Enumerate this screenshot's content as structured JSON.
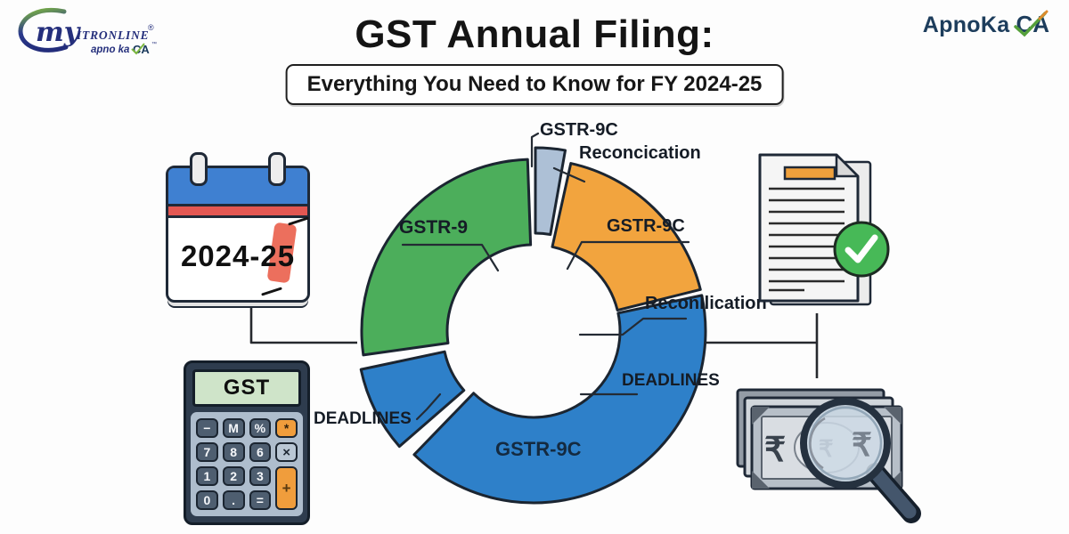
{
  "logos": {
    "left": {
      "my": "my",
      "itronline": "ITRONLINE",
      "reg": "®",
      "tagline": "apno ka",
      "ca": "CA",
      "tm": "™"
    },
    "right": {
      "apnoka": "ApnoKa",
      "ca": "CA"
    }
  },
  "header": {
    "title": "GST Annual Filing:",
    "subtitle": "Everything You Need to Know for FY 2024-25"
  },
  "chart_data": {
    "type": "pie",
    "subtype": "donut-infographic",
    "center": [
      599,
      372
    ],
    "outer_radius": 193,
    "inner_radius": 97,
    "outline_color": "#1b2531",
    "segments": [
      {
        "id": "reconciliation-sliver",
        "label": "GSTR-9C Reconcication",
        "color": "#adc0d6",
        "start_deg": 0,
        "end_deg": 10,
        "offset": [
          2,
          -13
        ]
      },
      {
        "id": "gstr9c-orange",
        "label": "GSTR-9C",
        "color": "#f2a43e",
        "start_deg": 12.5,
        "end_deg": 76,
        "offset": [
          0,
          0
        ]
      },
      {
        "id": "gstr9c-blue-main",
        "label": "GSTR-9C",
        "color": "#2e80c9",
        "start_deg": 78,
        "end_deg": 224,
        "offset": [
          0,
          0
        ]
      },
      {
        "id": "deadlines-piece",
        "label": "DEADLINES",
        "color": "#2e80c9",
        "start_deg": 229,
        "end_deg": 258,
        "offset": [
          -5,
          3
        ]
      },
      {
        "id": "gstr9-green",
        "label": "GSTR-9",
        "color": "#4cae5b",
        "start_deg": 262,
        "end_deg": 358,
        "offset": [
          0,
          0
        ]
      }
    ]
  },
  "chart_labels": {
    "top_gstr9c": "GSTR-9C",
    "reconcication": "Reconcication",
    "orange_gstr9c": "GSTR-9C",
    "reconllication": "Reconllication",
    "deadlines_right": "DEADLINES",
    "bottom_gstr9c": "GSTR-9C",
    "deadlines_left": "DEADLINES",
    "green_gstr9": "GSTR-9"
  },
  "calendar": {
    "year_text": "2024-25"
  },
  "calculator": {
    "display": "GST",
    "buttons": [
      {
        "name": "minus",
        "label": "−",
        "kind": "dark"
      },
      {
        "name": "memory",
        "label": "M",
        "kind": "dark"
      },
      {
        "name": "percent",
        "label": "%",
        "kind": "dark"
      },
      {
        "name": "asterisk",
        "label": "*",
        "kind": "orange"
      },
      {
        "name": "seven",
        "label": "7",
        "kind": "dark"
      },
      {
        "name": "eight",
        "label": "8",
        "kind": "dark"
      },
      {
        "name": "six",
        "label": "6",
        "kind": "dark"
      },
      {
        "name": "multiply",
        "label": "×",
        "kind": "light"
      },
      {
        "name": "one",
        "label": "1",
        "kind": "dark"
      },
      {
        "name": "two",
        "label": "2",
        "kind": "dark"
      },
      {
        "name": "three",
        "label": "3",
        "kind": "dark"
      },
      {
        "name": "plus",
        "label": "+",
        "kind": "orange-tall"
      },
      {
        "name": "zero",
        "label": "0",
        "kind": "dark"
      },
      {
        "name": "dot",
        "label": ".",
        "kind": "dark"
      },
      {
        "name": "equals",
        "label": "=",
        "kind": "dark"
      }
    ]
  },
  "icons": {
    "calendar": "calendar-2024-25-icon",
    "calculator": "gst-calculator-icon",
    "document": "document-with-checkmark-icon",
    "money": "rupee-notes-magnifier-icon"
  },
  "colors": {
    "green": "#4cae5b",
    "orange": "#f2a43e",
    "blue": "#2e80c9",
    "sliver_gray": "#adc0d6",
    "outline": "#1b2531",
    "calendar_blue": "#3f80d1",
    "calendar_red": "#e25752",
    "check_green": "#47b957",
    "logo_navy": "#252f7c",
    "apnoka_navy": "#1d3d5c"
  }
}
